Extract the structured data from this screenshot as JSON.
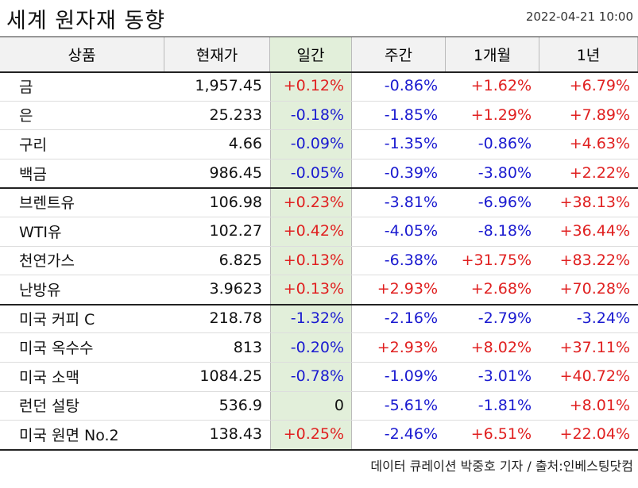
{
  "header": {
    "title": "세계 원자재 동향",
    "date": "2022-04-21 10:00"
  },
  "table": {
    "columns": [
      "상품",
      "현재가",
      "일간",
      "주간",
      "1개월",
      "1년"
    ],
    "rows": [
      [
        "금",
        "1,957.45",
        "+0.12%",
        "-0.86%",
        "+1.62%",
        "+6.79%"
      ],
      [
        "은",
        "25.233",
        "-0.18%",
        "-1.85%",
        "+1.29%",
        "+7.89%"
      ],
      [
        "구리",
        "4.66",
        "-0.09%",
        "-1.35%",
        "-0.86%",
        "+4.63%"
      ],
      [
        "백금",
        "986.45",
        "-0.05%",
        "-0.39%",
        "-3.80%",
        "+2.22%"
      ],
      [
        "브렌트유",
        "106.98",
        "+0.23%",
        "-3.81%",
        "-6.96%",
        "+38.13%"
      ],
      [
        "WTI유",
        "102.27",
        "+0.42%",
        "-4.05%",
        "-8.18%",
        "+36.44%"
      ],
      [
        "천연가스",
        "6.825",
        "+0.13%",
        "-6.38%",
        "+31.75%",
        "+83.22%"
      ],
      [
        "난방유",
        "3.9623",
        "+0.13%",
        "+2.93%",
        "+2.68%",
        "+70.28%"
      ],
      [
        "미국 커피 C",
        "218.78",
        "-1.32%",
        "-2.16%",
        "-2.79%",
        "-3.24%"
      ],
      [
        "미국 옥수수",
        "813",
        "-0.20%",
        "+2.93%",
        "+8.02%",
        "+37.11%"
      ],
      [
        "미국 소맥",
        "1084.25",
        "-0.78%",
        "-1.09%",
        "-3.01%",
        "+40.72%"
      ],
      [
        "런던 설탕",
        "536.9",
        "0",
        "-5.61%",
        "-1.81%",
        "+8.01%"
      ],
      [
        "미국 원면 No.2",
        "138.43",
        "+0.25%",
        "-2.46%",
        "+6.51%",
        "+22.04%"
      ]
    ]
  },
  "footer": "데이터 큐레이션 박중호 기자 / 출처:인베스팅닷컴"
}
